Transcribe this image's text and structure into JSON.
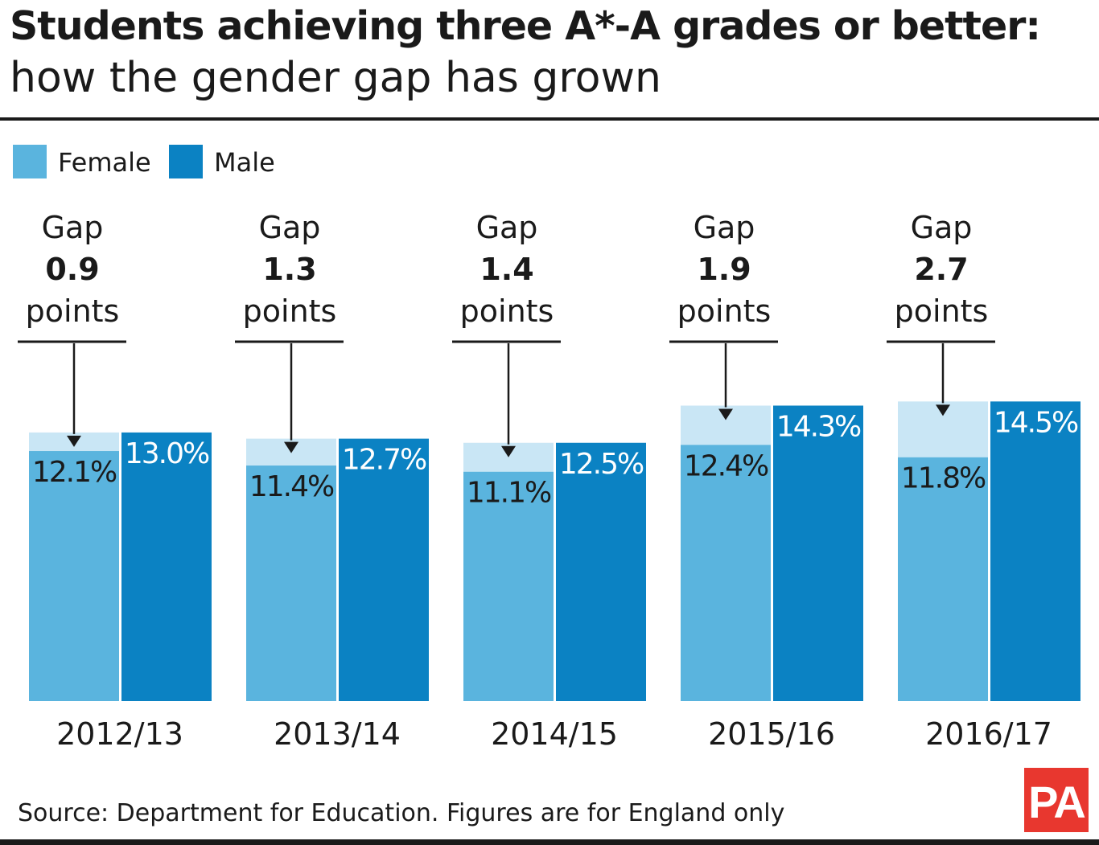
{
  "header": {
    "title": "Students achieving three A*-A grades or better:",
    "subtitle": "how the gender gap has grown"
  },
  "legend": {
    "female_label": "Female",
    "male_label": "Male"
  },
  "footer": {
    "source": "Source: Department for Education. Figures are for England only",
    "logo_text": "PA"
  },
  "colors": {
    "female": "#5ab4de",
    "male": "#0b82c3",
    "gap": "#c9e6f5",
    "text": "#1a1a1a",
    "logo": "#e8372f"
  },
  "chart_data": {
    "type": "bar",
    "title": "Students achieving three A*-A grades or better:",
    "subtitle": "how the gender gap has grown",
    "categories": [
      "2012/13",
      "2013/14",
      "2014/15",
      "2015/16",
      "2016/17"
    ],
    "series": [
      {
        "name": "Female",
        "values": [
          12.1,
          11.4,
          11.1,
          12.4,
          11.8
        ],
        "labels": [
          "12.1%",
          "11.4%",
          "11.1%",
          "12.4%",
          "11.8%"
        ]
      },
      {
        "name": "Male",
        "values": [
          13.0,
          12.7,
          12.5,
          14.3,
          14.5
        ],
        "labels": [
          "13.0%",
          "12.7%",
          "12.5%",
          "14.3%",
          "14.5%"
        ]
      }
    ],
    "gap_annotations": [
      {
        "word": "Gap",
        "value": "0.9",
        "unit": "points"
      },
      {
        "word": "Gap",
        "value": "1.3",
        "unit": "points"
      },
      {
        "word": "Gap",
        "value": "1.4",
        "unit": "points"
      },
      {
        "word": "Gap",
        "value": "1.9",
        "unit": "points"
      },
      {
        "word": "Gap",
        "value": "2.7",
        "unit": "points"
      }
    ],
    "xlabel": "",
    "ylabel": "",
    "grid": false,
    "legend_position": "top-left"
  }
}
